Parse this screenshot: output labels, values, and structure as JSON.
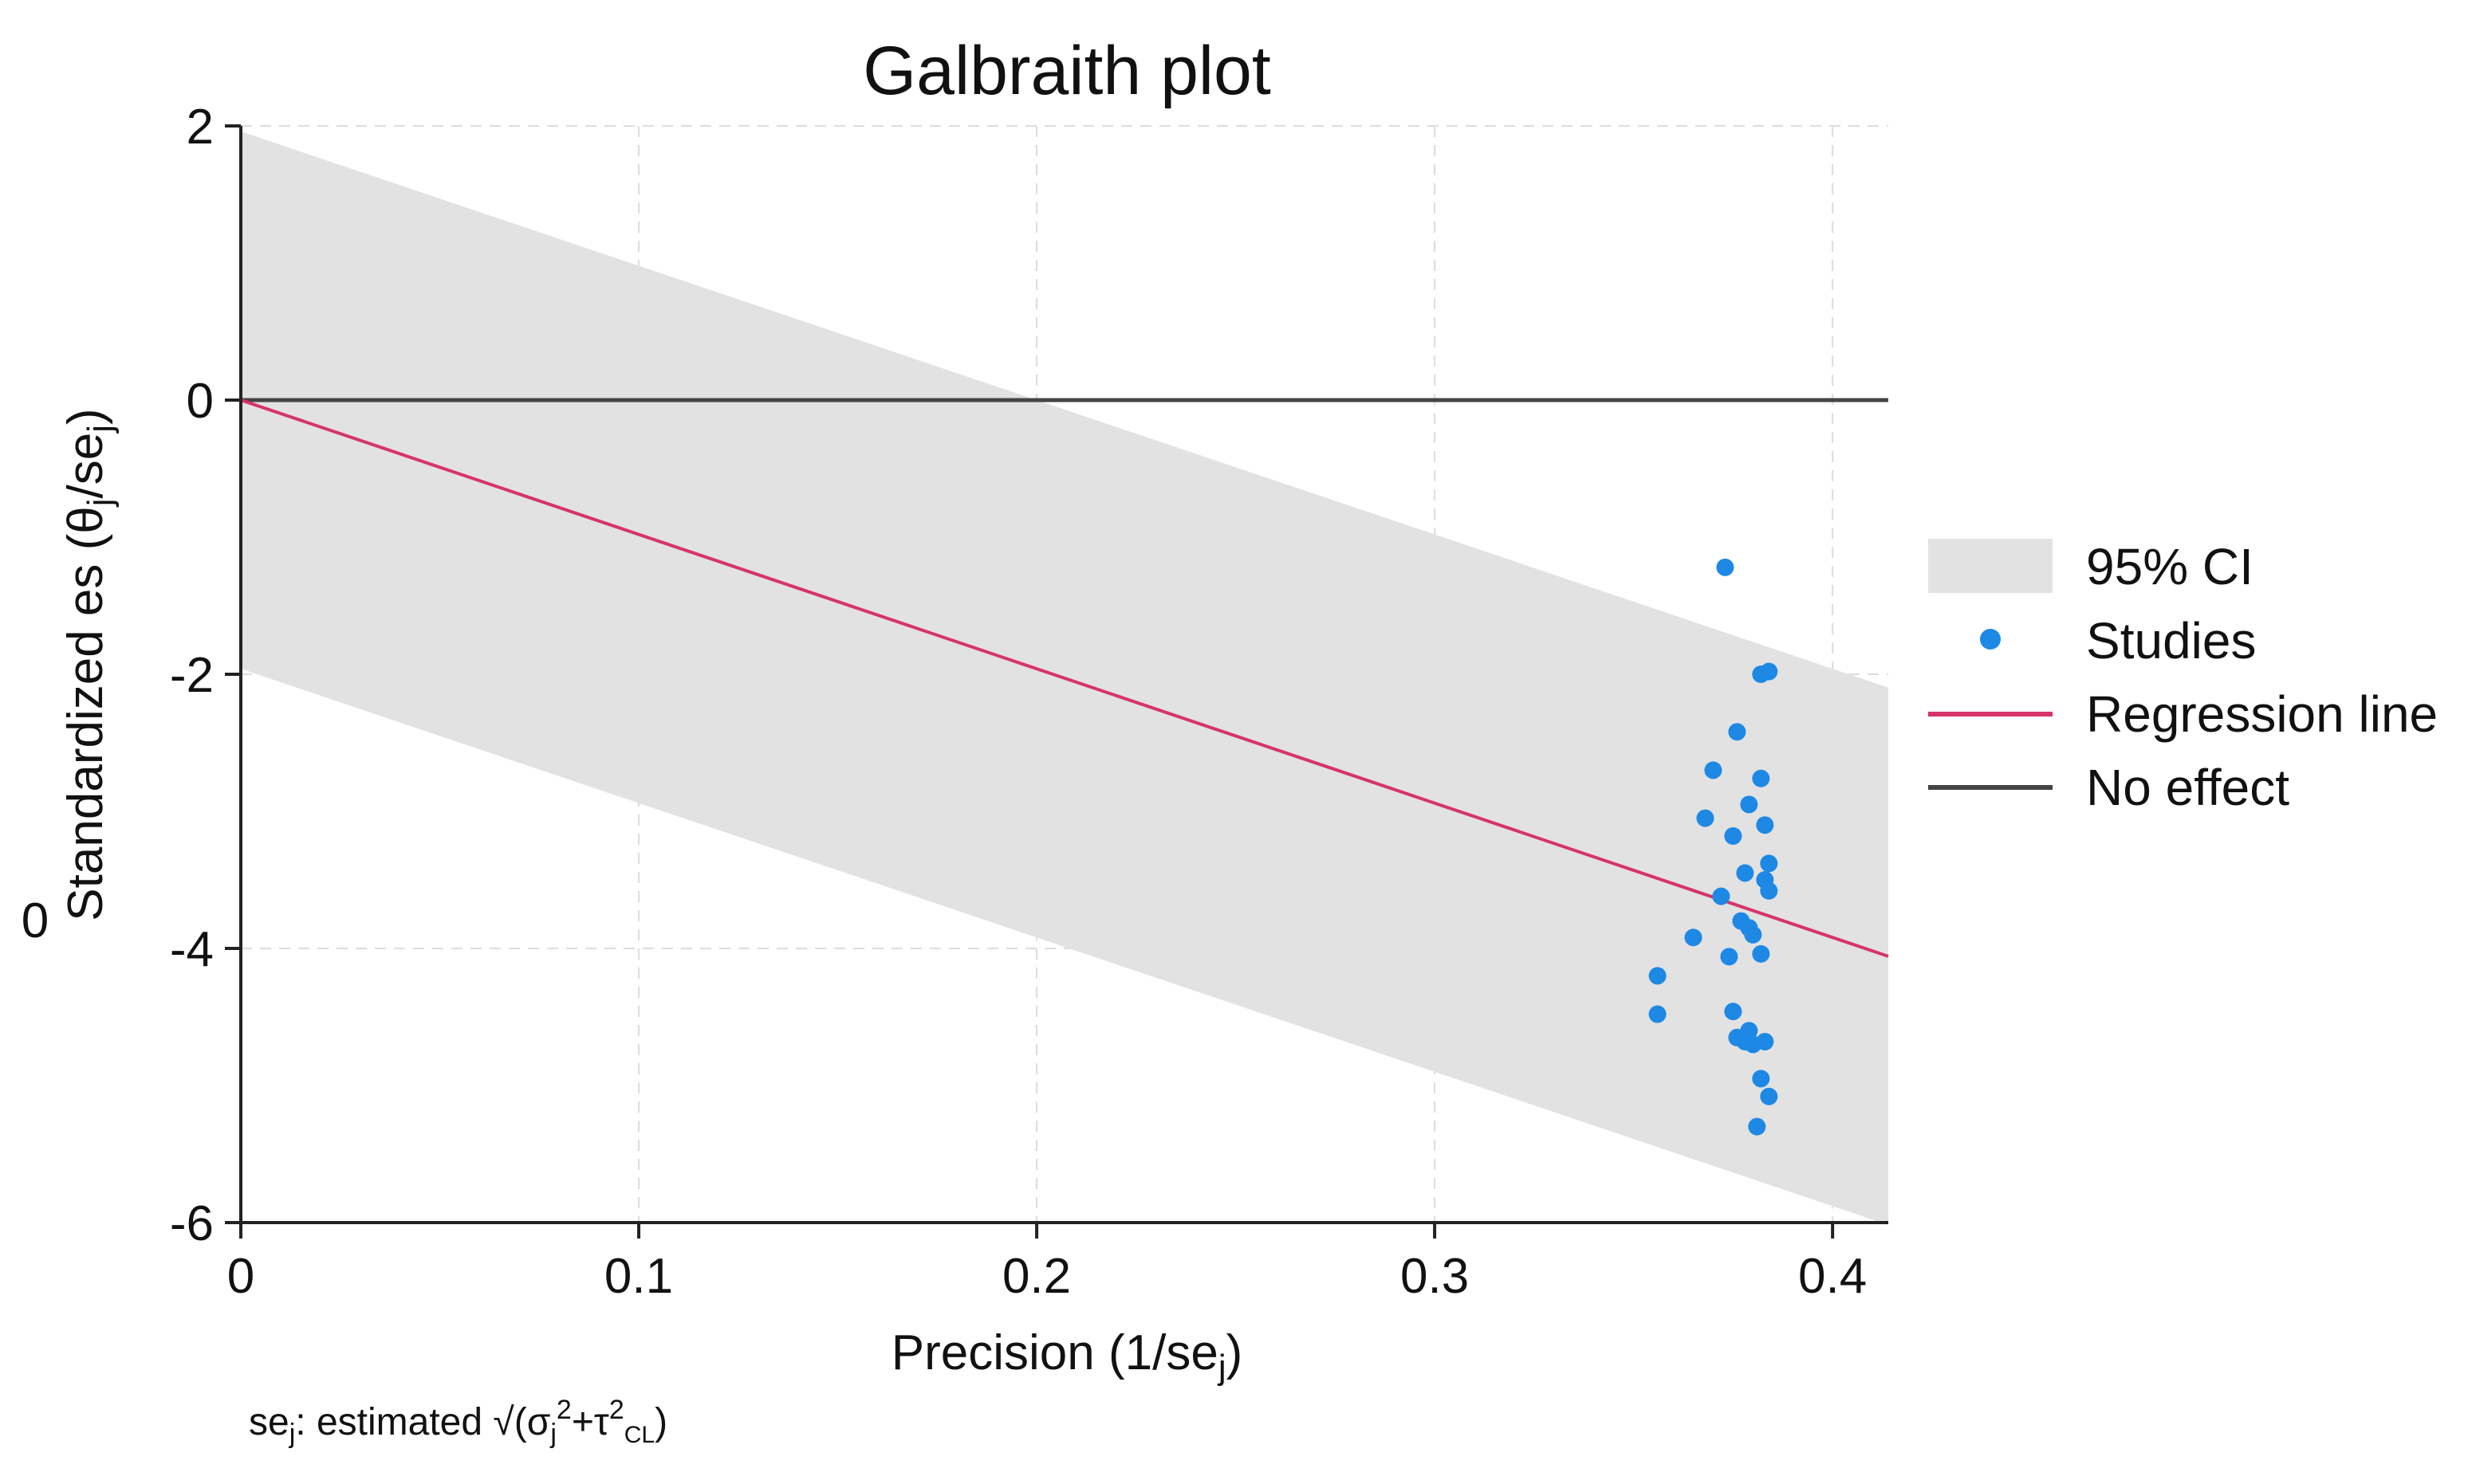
{
  "chart_data": {
    "type": "scatter",
    "title": "Galbraith plot",
    "xlabel": "Precision (1/se",
    "xlabel_sub": "j",
    "xlabel_end": ")",
    "ylabel": "Standardized es  (θ",
    "ylabel_sub": "j",
    "ylabel_mid": "/se",
    "ylabel_sub2": "j",
    "ylabel_end": ")",
    "stray_label": "0",
    "xlim": [
      0,
      0.414
    ],
    "ylim": [
      -6,
      2
    ],
    "x_ticks": [
      {
        "value": 0,
        "label": "0"
      },
      {
        "value": 0.1,
        "label": "0.1"
      },
      {
        "value": 0.2,
        "label": "0.2"
      },
      {
        "value": 0.3,
        "label": "0.3"
      },
      {
        "value": 0.4,
        "label": "0.4"
      }
    ],
    "y_ticks": [
      {
        "value": 2,
        "label": "2"
      },
      {
        "value": 0,
        "label": "0"
      },
      {
        "value": -2,
        "label": "-2"
      },
      {
        "value": -4,
        "label": "-4"
      },
      {
        "value": -6,
        "label": "-6"
      }
    ],
    "grid": true,
    "ci_band": {
      "name": "95% CI",
      "slope": -9.8,
      "intercept_upper": 1.96,
      "intercept_lower": -1.96,
      "color": "#e2e2e2"
    },
    "regression_line": {
      "name": "Regression line",
      "slope": -9.8,
      "intercept": 0,
      "color": "#d6336c"
    },
    "no_effect_line": {
      "name": "No effect",
      "y": 0,
      "color": "#444444"
    },
    "studies": {
      "name": "Studies",
      "color": "#1e88e5",
      "points": [
        {
          "x": 0.373,
          "y": -1.22
        },
        {
          "x": 0.382,
          "y": -2.0
        },
        {
          "x": 0.384,
          "y": -1.98
        },
        {
          "x": 0.376,
          "y": -2.42
        },
        {
          "x": 0.37,
          "y": -2.7
        },
        {
          "x": 0.382,
          "y": -2.76
        },
        {
          "x": 0.379,
          "y": -2.95
        },
        {
          "x": 0.368,
          "y": -3.05
        },
        {
          "x": 0.383,
          "y": -3.1
        },
        {
          "x": 0.375,
          "y": -3.18
        },
        {
          "x": 0.384,
          "y": -3.38
        },
        {
          "x": 0.378,
          "y": -3.45
        },
        {
          "x": 0.383,
          "y": -3.5
        },
        {
          "x": 0.384,
          "y": -3.58
        },
        {
          "x": 0.372,
          "y": -3.62
        },
        {
          "x": 0.377,
          "y": -3.8
        },
        {
          "x": 0.379,
          "y": -3.85
        },
        {
          "x": 0.38,
          "y": -3.9
        },
        {
          "x": 0.365,
          "y": -3.92
        },
        {
          "x": 0.374,
          "y": -4.06
        },
        {
          "x": 0.382,
          "y": -4.04
        },
        {
          "x": 0.356,
          "y": -4.2
        },
        {
          "x": 0.375,
          "y": -4.46
        },
        {
          "x": 0.356,
          "y": -4.48
        },
        {
          "x": 0.379,
          "y": -4.6
        },
        {
          "x": 0.376,
          "y": -4.65
        },
        {
          "x": 0.378,
          "y": -4.68
        },
        {
          "x": 0.38,
          "y": -4.7
        },
        {
          "x": 0.383,
          "y": -4.68
        },
        {
          "x": 0.382,
          "y": -4.95
        },
        {
          "x": 0.384,
          "y": -5.08
        },
        {
          "x": 0.381,
          "y": -5.3
        }
      ]
    },
    "legend": {
      "position": "right",
      "entries": [
        "95% CI",
        "Studies",
        "Regression line",
        "No effect"
      ]
    },
    "footnote": {
      "prefix": "se",
      "prefix_sub": "j",
      "text": ": estimated √(σ",
      "sigma_sub": "j",
      "sigma_sup": "2",
      "plus_tau": "+τ",
      "tau_sup": "2",
      "tau_sub": "CL",
      "end": ")"
    }
  }
}
